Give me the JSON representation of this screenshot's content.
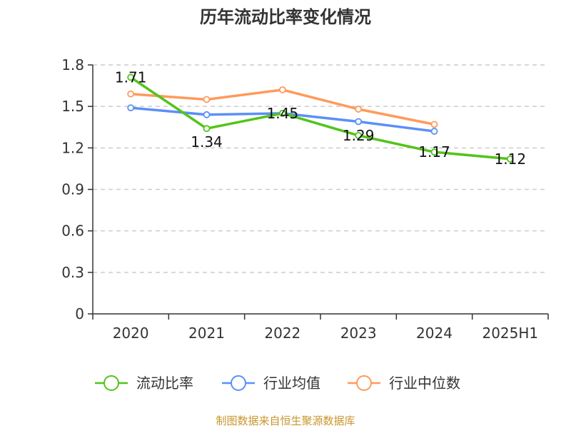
{
  "title": "历年流动比率变化情况",
  "source": "制图数据来自恒生聚源数据库",
  "chart_data": {
    "type": "line",
    "categories": [
      "2020",
      "2021",
      "2022",
      "2023",
      "2024",
      "2025H1"
    ],
    "ylim": [
      0,
      1.8
    ],
    "yticks": [
      "0",
      "0.3",
      "0.6",
      "0.9",
      "1.2",
      "1.5",
      "1.8"
    ],
    "grid": true,
    "legend_position": "bottom",
    "series": [
      {
        "name": "流动比率",
        "color": "#52c41a",
        "values": [
          1.71,
          1.34,
          1.45,
          1.29,
          1.17,
          1.12
        ],
        "labels": [
          "1.71",
          "1.34",
          "1.45",
          "1.29",
          "1.17",
          "1.12"
        ]
      },
      {
        "name": "行业均值",
        "color": "#5b8ff9",
        "values": [
          1.49,
          1.44,
          1.45,
          1.39,
          1.32,
          null
        ]
      },
      {
        "name": "行业中位数",
        "color": "#ff9a5b",
        "values": [
          1.59,
          1.55,
          1.62,
          1.48,
          1.37,
          null
        ]
      }
    ]
  }
}
